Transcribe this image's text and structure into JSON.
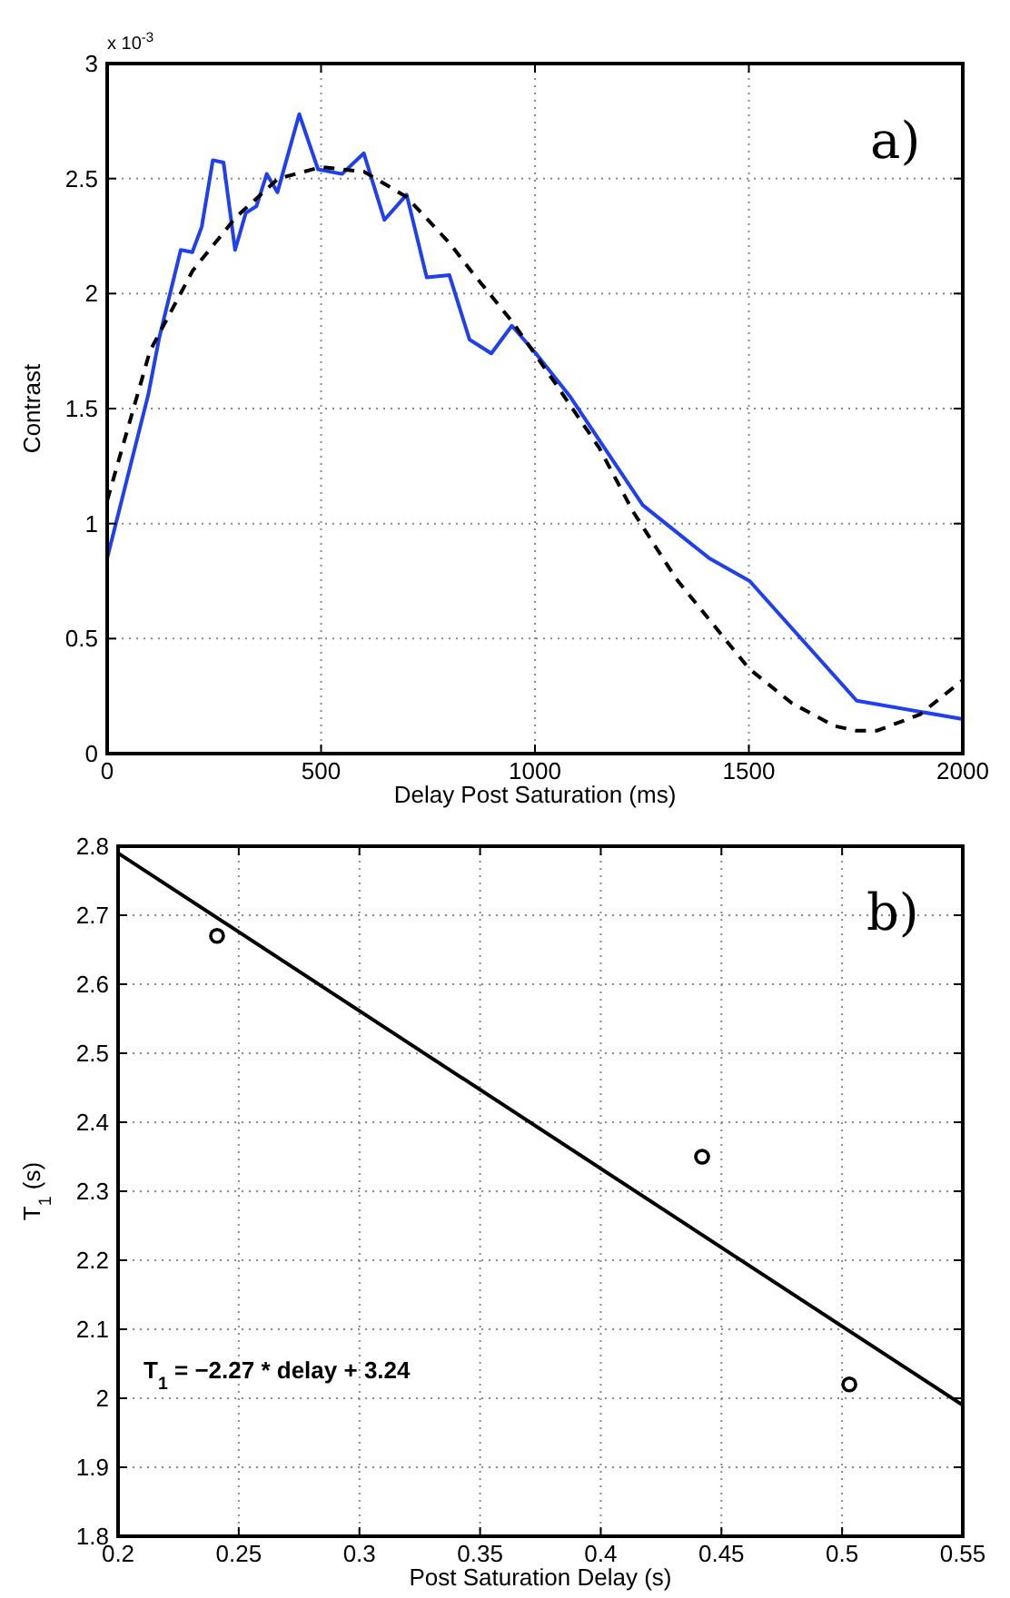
{
  "chart_data": [
    {
      "type": "line",
      "xlabel": "Delay Post Saturation (ms)",
      "ylabel": "Contrast",
      "xlim": [
        0,
        2000
      ],
      "ylim": [
        0,
        3
      ],
      "xticks": [
        0,
        500,
        1000,
        1500,
        2000
      ],
      "yticks": [
        0,
        0.5,
        1,
        1.5,
        2,
        2.5,
        3
      ],
      "grid": true,
      "annotations": [
        "x 10$^{-3}$",
        "a)"
      ],
      "series": [
        {
          "color": "#1f3ff0",
          "line_style": "solid",
          "x": [
            0,
            96,
            122,
            172,
            199,
            221,
            247,
            272,
            299,
            324,
            349,
            373,
            398,
            449,
            493,
            549,
            600,
            648,
            700,
            747,
            800,
            847,
            898,
            946,
            1002,
            1083,
            1252,
            1407,
            1502,
            1752,
            2000
          ],
          "values": [
            0.85,
            1.56,
            1.81,
            2.19,
            2.18,
            2.29,
            2.58,
            2.57,
            2.19,
            2.35,
            2.38,
            2.52,
            2.44,
            2.78,
            2.54,
            2.52,
            2.61,
            2.32,
            2.43,
            2.07,
            2.08,
            1.8,
            1.74,
            1.86,
            1.74,
            1.55,
            1.08,
            0.85,
            0.75,
            0.23,
            0.15
          ]
        },
        {
          "color": "#000000",
          "line_style": "dashed",
          "x": [
            0,
            100,
            200,
            300,
            400,
            500,
            600,
            700,
            800,
            850,
            950,
            1040,
            1150,
            1230,
            1330,
            1500,
            1600,
            1700,
            1750,
            1800,
            1900,
            2000
          ],
          "values": [
            1.1,
            1.75,
            2.1,
            2.33,
            2.5,
            2.55,
            2.53,
            2.42,
            2.22,
            2.1,
            1.87,
            1.63,
            1.33,
            1.05,
            0.76,
            0.37,
            0.22,
            0.12,
            0.1,
            0.1,
            0.17,
            0.32
          ]
        }
      ]
    },
    {
      "type": "scatter",
      "xlabel": "Post Saturation Delay (s)",
      "ylabel": "T$_{1}$ (s)",
      "xlim": [
        0.2,
        0.55
      ],
      "ylim": [
        1.8,
        2.8
      ],
      "xticks": [
        0.2,
        0.25,
        0.3,
        0.35,
        0.4,
        0.45,
        0.5,
        0.55
      ],
      "yticks": [
        1.8,
        1.9,
        2,
        2.1,
        2.2,
        2.3,
        2.4,
        2.5,
        2.6,
        2.7,
        2.8
      ],
      "grid": true,
      "annotations": [
        "b)",
        "T$_{1}$ = −2.27 * delay + 3.24"
      ],
      "series": [
        {
          "marker": "circle",
          "color": "#000000",
          "x": [
            0.241,
            0.442,
            0.503
          ],
          "values": [
            2.67,
            2.35,
            2.02
          ]
        },
        {
          "type": "line",
          "marker": "none",
          "color": "#000000",
          "line_style": "solid",
          "x": [
            0.2,
            0.55
          ],
          "values": [
            2.79,
            1.99
          ]
        }
      ]
    }
  ]
}
